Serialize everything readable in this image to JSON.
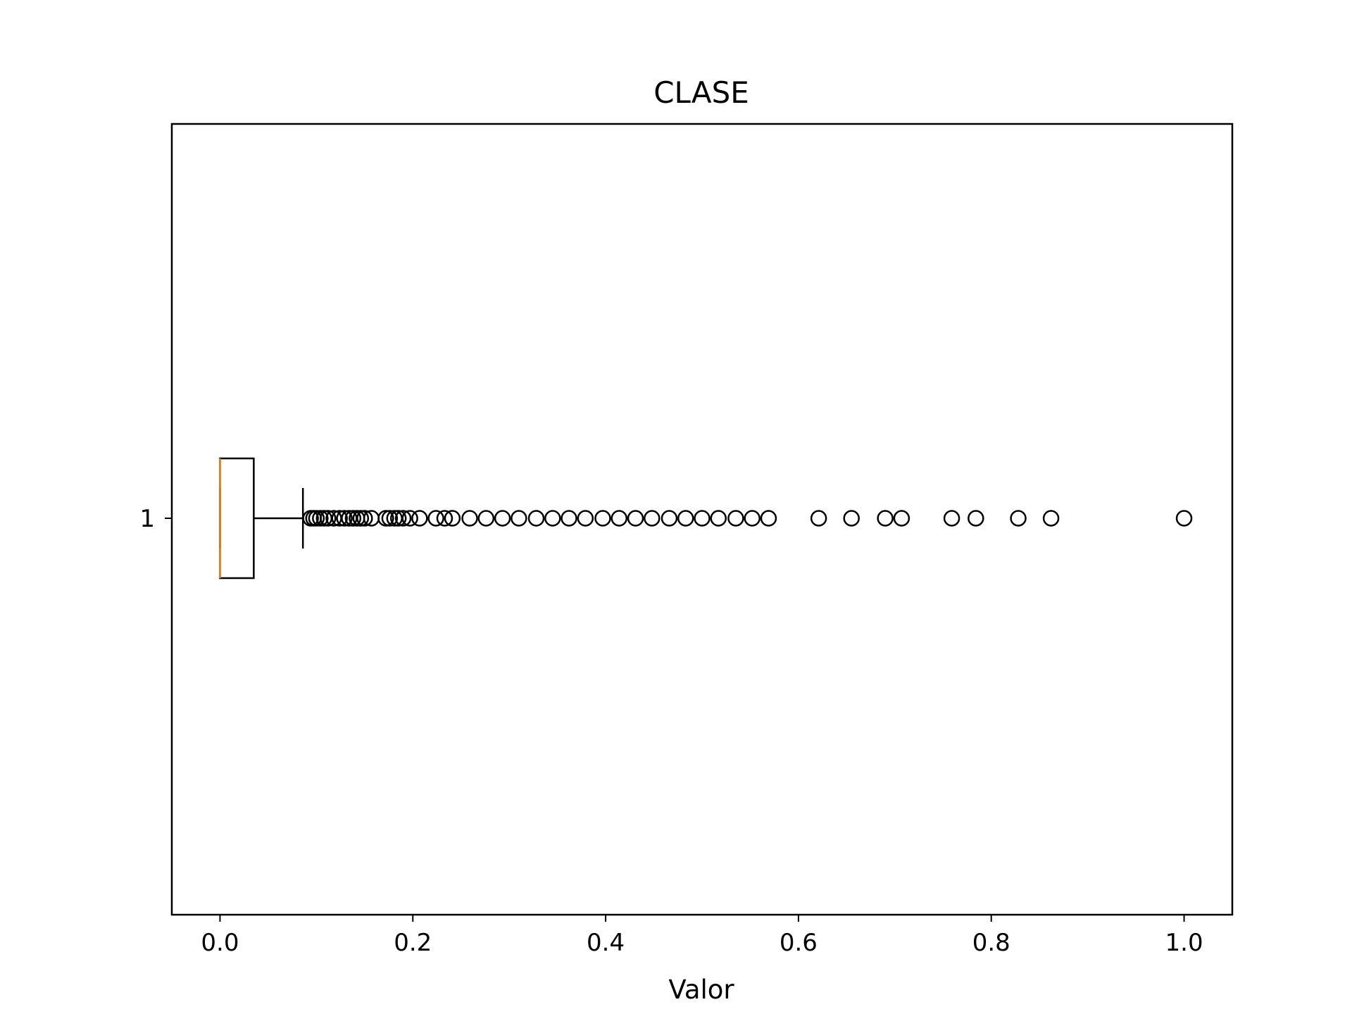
{
  "chart_data": {
    "type": "boxplot",
    "orientation": "horizontal",
    "title": "CLASE",
    "xlabel": "Valor",
    "ylabel": "",
    "xlim": [
      -0.05,
      1.05
    ],
    "xticks": [
      0.0,
      0.2,
      0.4,
      0.6,
      0.8,
      1.0
    ],
    "xtick_labels": [
      "0.0",
      "0.2",
      "0.4",
      "0.6",
      "0.8",
      "1.0"
    ],
    "yticks": [
      "1"
    ],
    "grid": false,
    "legend": "none",
    "series": [
      {
        "category": "1",
        "min": 0.0,
        "q1": 0.0,
        "median": 0.0,
        "q3": 0.035,
        "whisker_high": 0.086,
        "outliers": [
          0.094,
          0.097,
          0.1,
          0.104,
          0.108,
          0.112,
          0.118,
          0.124,
          0.129,
          0.134,
          0.138,
          0.142,
          0.146,
          0.15,
          0.157,
          0.172,
          0.176,
          0.181,
          0.185,
          0.19,
          0.197,
          0.207,
          0.224,
          0.233,
          0.241,
          0.259,
          0.276,
          0.293,
          0.31,
          0.328,
          0.345,
          0.362,
          0.379,
          0.397,
          0.414,
          0.431,
          0.448,
          0.466,
          0.483,
          0.5,
          0.517,
          0.535,
          0.552,
          0.569,
          0.621,
          0.655,
          0.69,
          0.707,
          0.759,
          0.784,
          0.828,
          0.862,
          1.0
        ]
      }
    ],
    "colors": {
      "median": "#ff7f0e",
      "box": "#000000",
      "outlier": "#000000"
    }
  }
}
